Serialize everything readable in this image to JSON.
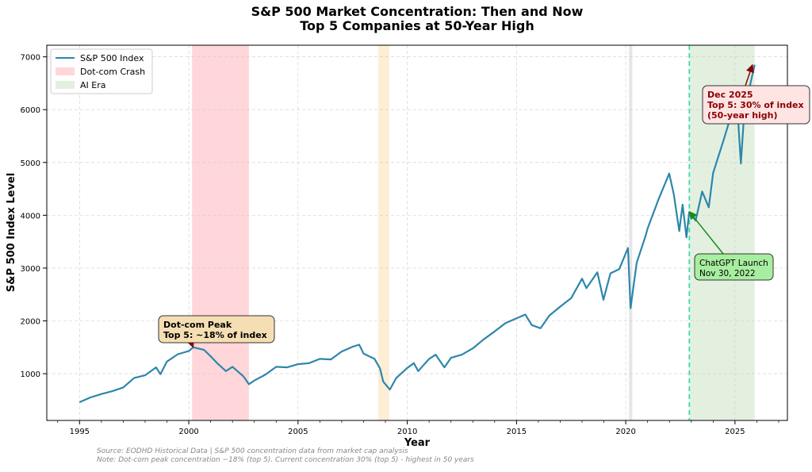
{
  "chart_data": {
    "type": "line",
    "title": "S&P 500 Market Concentration: Then and Now",
    "subtitle": "Top 5 Companies at 50-Year High",
    "xlabel": "Year",
    "ylabel": "S&P 500 Index Level",
    "xlim": [
      1993.5,
      2027.4
    ],
    "ylim": [
      115,
      7220
    ],
    "xticks": [
      1995,
      2000,
      2005,
      2010,
      2015,
      2020,
      2025
    ],
    "yticks": [
      1000,
      2000,
      3000,
      4000,
      5000,
      6000,
      7000
    ],
    "grid": true,
    "legend_placement": "top-left",
    "legend": [
      {
        "label": "S&P 500 Index",
        "kind": "line",
        "color": "#2e86ab"
      },
      {
        "label": "Dot-com Crash",
        "kind": "patch",
        "color": "#ffd6d9"
      },
      {
        "label": "AI Era",
        "kind": "patch",
        "color": "#e3f0e0"
      }
    ],
    "spans": [
      {
        "name": "Dot-com Crash",
        "from": 2000.15,
        "to": 2002.75,
        "color": "#ffd6d9"
      },
      {
        "from": 2008.67,
        "to": 2009.18,
        "color": "#fdeed6"
      },
      {
        "from": 2020.15,
        "to": 2020.3,
        "color": "#e6e6e6"
      },
      {
        "name": "AI Era",
        "from": 2022.91,
        "to": 2025.9,
        "color": "#e3f0e0"
      }
    ],
    "vline": {
      "x": 2022.91,
      "color": "#3ddcaa",
      "style": "dashed"
    },
    "series": [
      {
        "name": "S&P 500 Index",
        "color": "#2e86ab",
        "x": [
          1995.0,
          1995.5,
          1996.0,
          1996.5,
          1997.0,
          1997.5,
          1998.0,
          1998.5,
          1998.7,
          1999.0,
          1999.5,
          2000.0,
          2000.2,
          2000.7,
          2001.0,
          2001.3,
          2001.7,
          2002.0,
          2002.5,
          2002.75,
          2003.0,
          2003.5,
          2004.0,
          2004.5,
          2005.0,
          2005.5,
          2006.0,
          2006.5,
          2007.0,
          2007.5,
          2007.8,
          2008.0,
          2008.5,
          2008.75,
          2008.9,
          2009.2,
          2009.5,
          2010.0,
          2010.3,
          2010.5,
          2011.0,
          2011.3,
          2011.7,
          2012.0,
          2012.5,
          2013.0,
          2013.5,
          2014.0,
          2014.5,
          2015.0,
          2015.4,
          2015.7,
          2016.1,
          2016.5,
          2017.0,
          2017.5,
          2018.0,
          2018.2,
          2018.7,
          2018.98,
          2019.3,
          2019.7,
          2020.1,
          2020.22,
          2020.5,
          2020.9,
          2021.0,
          2021.5,
          2021.99,
          2022.2,
          2022.45,
          2022.6,
          2022.78,
          2022.9,
          2023.2,
          2023.5,
          2023.8,
          2024.0,
          2024.5,
          2024.9,
          2025.1,
          2025.27,
          2025.4,
          2025.6,
          2025.9
        ],
        "y": [
          460,
          550,
          615,
          670,
          740,
          920,
          970,
          1120,
          990,
          1230,
          1370,
          1430,
          1500,
          1450,
          1330,
          1200,
          1050,
          1130,
          950,
          800,
          870,
          980,
          1130,
          1120,
          1180,
          1200,
          1280,
          1270,
          1420,
          1510,
          1550,
          1380,
          1280,
          1100,
          850,
          700,
          920,
          1110,
          1200,
          1050,
          1280,
          1360,
          1120,
          1300,
          1360,
          1480,
          1650,
          1800,
          1960,
          2050,
          2120,
          1920,
          1860,
          2100,
          2270,
          2430,
          2800,
          2620,
          2920,
          2400,
          2900,
          2980,
          3380,
          2240,
          3100,
          3600,
          3750,
          4300,
          4790,
          4400,
          3700,
          4200,
          3580,
          4050,
          3900,
          4450,
          4150,
          4800,
          5450,
          6000,
          6100,
          4980,
          5800,
          6300,
          6850
        ]
      }
    ],
    "annotations": [
      {
        "lines": [
          "Dot-com Peak",
          "Top 5: ~18% of index"
        ],
        "target": [
          2000.2,
          1500
        ],
        "bg": "#f5deb3",
        "text_color": "#000000",
        "arrow_color": "#8b0000",
        "bold": true
      },
      {
        "lines": [
          "Dec 2025",
          "Top 5: 30% of index",
          "(50-year high)"
        ],
        "target": [
          2025.8,
          6850
        ],
        "bg": "#ffe4e4",
        "text_color": "#8b0000",
        "arrow_color": "#8b0000",
        "bold": true
      },
      {
        "lines": [
          "ChatGPT Launch",
          "Nov 30, 2022"
        ],
        "target": [
          2022.91,
          4070
        ],
        "bg": "#a8eea0",
        "text_color": "#000000",
        "arrow_color": "#1a8a1a",
        "bold": false
      }
    ],
    "footnotes": [
      "Source: EODHD Historical Data | S&P 500 concentration data from market cap analysis",
      "Note: Dot-com peak concentration ~18% (top 5). Current concentration 30% (top 5) - highest in 50 years"
    ]
  }
}
